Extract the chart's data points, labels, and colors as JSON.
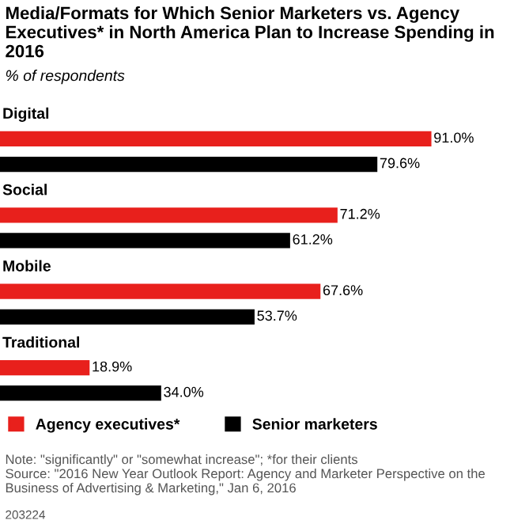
{
  "chart_data": {
    "type": "bar",
    "orientation": "horizontal",
    "title": "Media/Formats for Which Senior Marketers vs. Agency Executives* in North America Plan to Increase Spending in 2016",
    "subtitle": "% of respondents",
    "categories": [
      "Digital",
      "Social",
      "Mobile",
      "Traditional"
    ],
    "series": [
      {
        "name": "Agency executives*",
        "color": "#e8201c",
        "values": [
          91.0,
          71.2,
          67.6,
          18.9
        ],
        "value_labels": [
          "91.0%",
          "71.2%",
          "67.6%",
          "18.9%"
        ]
      },
      {
        "name": "Senior marketers",
        "color": "#000000",
        "values": [
          79.6,
          61.2,
          53.7,
          34.0
        ],
        "value_labels": [
          "79.6%",
          "61.2%",
          "53.7%",
          "34.0%"
        ]
      }
    ],
    "legend": "bottom",
    "annotations": [
      "Note: \"significantly\" or \"somewhat increase\"; *for their clients",
      "Source: \"2016 New Year Outlook Report: Agency and Marketer Perspective on the Business of Advertising & Marketing,\" Jan 6, 2016",
      "203224"
    ]
  }
}
